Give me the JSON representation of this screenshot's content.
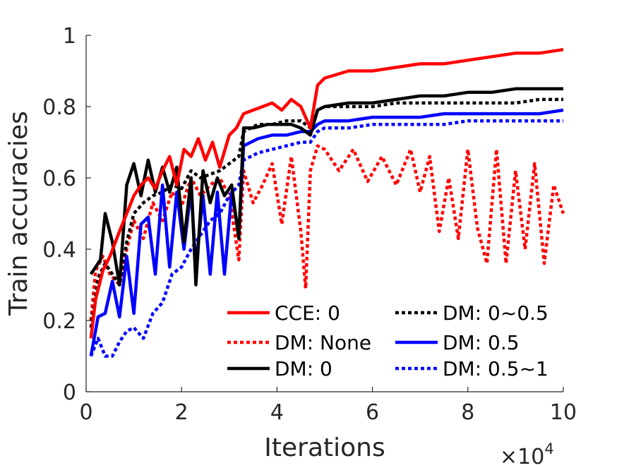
{
  "chart_data": {
    "type": "line",
    "title": "",
    "xlabel": "Iterations",
    "ylabel": "Train accuracies",
    "x_multiplier_label": "×10",
    "x_multiplier_exponent": "4",
    "xlim": [
      0,
      10
    ],
    "ylim": [
      0,
      1
    ],
    "x_ticks": [
      0,
      2,
      4,
      6,
      8,
      10
    ],
    "x_tick_labels": [
      "0",
      "2",
      "4",
      "6",
      "8",
      "10"
    ],
    "y_ticks": [
      0,
      0.2,
      0.4,
      0.6,
      0.8,
      1
    ],
    "y_tick_labels": [
      "0",
      "0.2",
      "0.4",
      "0.6",
      "0.8",
      "1"
    ],
    "grid": false,
    "legend_position": "bottom-right",
    "x_unit_note": "iterations in units of 10^4",
    "series": [
      {
        "name": "CCE: 0",
        "color": "#ff0000",
        "style": "solid",
        "x": [
          0.1,
          0.2,
          0.35,
          0.5,
          0.7,
          0.85,
          1.0,
          1.15,
          1.3,
          1.45,
          1.6,
          1.75,
          1.9,
          2.05,
          2.2,
          2.35,
          2.5,
          2.65,
          2.8,
          3.0,
          3.15,
          3.3,
          3.5,
          3.7,
          3.9,
          4.1,
          4.3,
          4.5,
          4.7,
          4.85,
          5.0,
          5.5,
          6.0,
          6.5,
          7.0,
          7.5,
          8.0,
          8.5,
          9.0,
          9.5,
          10.0
        ],
        "y": [
          0.15,
          0.26,
          0.34,
          0.38,
          0.45,
          0.5,
          0.55,
          0.58,
          0.6,
          0.57,
          0.62,
          0.66,
          0.58,
          0.68,
          0.66,
          0.71,
          0.65,
          0.7,
          0.63,
          0.72,
          0.74,
          0.78,
          0.79,
          0.8,
          0.81,
          0.79,
          0.82,
          0.8,
          0.74,
          0.86,
          0.88,
          0.9,
          0.9,
          0.91,
          0.92,
          0.92,
          0.93,
          0.94,
          0.95,
          0.95,
          0.96
        ]
      },
      {
        "name": "DM: None",
        "color": "#ff0000",
        "style": "dotted",
        "x": [
          0.1,
          0.2,
          0.35,
          0.5,
          0.7,
          0.85,
          1.0,
          1.2,
          1.4,
          1.6,
          1.8,
          2.0,
          2.2,
          2.4,
          2.6,
          2.8,
          3.0,
          3.2,
          3.3,
          3.5,
          3.7,
          3.9,
          4.1,
          4.3,
          4.5,
          4.6,
          4.7,
          4.85,
          5.0,
          5.3,
          5.6,
          5.9,
          6.2,
          6.5,
          6.8,
          7.0,
          7.2,
          7.4,
          7.6,
          7.8,
          8.0,
          8.2,
          8.4,
          8.6,
          8.8,
          9.0,
          9.2,
          9.4,
          9.6,
          9.8,
          10.0
        ],
        "y": [
          0.2,
          0.34,
          0.38,
          0.33,
          0.3,
          0.4,
          0.48,
          0.43,
          0.53,
          0.48,
          0.56,
          0.52,
          0.6,
          0.55,
          0.58,
          0.6,
          0.55,
          0.37,
          0.62,
          0.53,
          0.58,
          0.64,
          0.47,
          0.66,
          0.45,
          0.29,
          0.62,
          0.69,
          0.68,
          0.62,
          0.68,
          0.59,
          0.66,
          0.58,
          0.68,
          0.56,
          0.66,
          0.45,
          0.6,
          0.43,
          0.68,
          0.46,
          0.36,
          0.68,
          0.36,
          0.62,
          0.4,
          0.64,
          0.36,
          0.58,
          0.5
        ]
      },
      {
        "name": "DM: 0",
        "color": "#000000",
        "style": "solid",
        "x": [
          0.1,
          0.3,
          0.4,
          0.55,
          0.7,
          0.85,
          1.0,
          1.15,
          1.3,
          1.45,
          1.6,
          1.75,
          1.9,
          2.05,
          2.2,
          2.3,
          2.45,
          2.6,
          2.75,
          2.9,
          3.05,
          3.2,
          3.3,
          3.5,
          3.8,
          4.0,
          4.3,
          4.5,
          4.7,
          4.85,
          5.0,
          5.5,
          6.0,
          6.5,
          7.0,
          7.5,
          8.0,
          8.5,
          9.0,
          9.5,
          10.0
        ],
        "y": [
          0.33,
          0.37,
          0.5,
          0.42,
          0.3,
          0.58,
          0.64,
          0.55,
          0.65,
          0.56,
          0.63,
          0.56,
          0.63,
          0.42,
          0.6,
          0.3,
          0.62,
          0.53,
          0.6,
          0.55,
          0.58,
          0.43,
          0.74,
          0.74,
          0.75,
          0.75,
          0.75,
          0.74,
          0.72,
          0.79,
          0.8,
          0.81,
          0.81,
          0.82,
          0.83,
          0.83,
          0.84,
          0.84,
          0.85,
          0.85,
          0.85
        ]
      },
      {
        "name": "DM: 0~0.5",
        "color": "#000000",
        "style": "dotted",
        "x": [
          0.1,
          0.25,
          0.4,
          0.55,
          0.7,
          0.85,
          1.0,
          1.2,
          1.4,
          1.6,
          1.8,
          2.0,
          2.2,
          2.4,
          2.6,
          2.8,
          3.0,
          3.2,
          3.3,
          3.6,
          3.9,
          4.2,
          4.5,
          4.7,
          4.85,
          5.0,
          5.5,
          6.0,
          6.5,
          7.0,
          7.5,
          8.0,
          8.5,
          9.0,
          9.5,
          10.0
        ],
        "y": [
          0.18,
          0.32,
          0.36,
          0.33,
          0.3,
          0.42,
          0.5,
          0.53,
          0.55,
          0.56,
          0.58,
          0.57,
          0.62,
          0.6,
          0.61,
          0.62,
          0.64,
          0.66,
          0.73,
          0.75,
          0.75,
          0.76,
          0.76,
          0.74,
          0.79,
          0.8,
          0.8,
          0.8,
          0.81,
          0.81,
          0.81,
          0.81,
          0.81,
          0.81,
          0.82,
          0.82
        ]
      },
      {
        "name": "DM: 0.5",
        "color": "#0000ff",
        "style": "solid",
        "x": [
          0.1,
          0.25,
          0.4,
          0.55,
          0.7,
          0.85,
          1.0,
          1.15,
          1.3,
          1.45,
          1.6,
          1.75,
          1.9,
          2.05,
          2.2,
          2.3,
          2.45,
          2.6,
          2.75,
          2.9,
          3.05,
          3.2,
          3.3,
          3.6,
          3.9,
          4.2,
          4.5,
          4.7,
          4.85,
          5.0,
          5.5,
          6.0,
          6.5,
          7.0,
          7.5,
          8.0,
          8.5,
          9.0,
          9.5,
          10.0
        ],
        "y": [
          0.1,
          0.21,
          0.22,
          0.31,
          0.21,
          0.38,
          0.22,
          0.47,
          0.49,
          0.33,
          0.58,
          0.35,
          0.56,
          0.4,
          0.57,
          0.35,
          0.55,
          0.33,
          0.56,
          0.33,
          0.56,
          0.44,
          0.69,
          0.71,
          0.72,
          0.72,
          0.73,
          0.73,
          0.75,
          0.76,
          0.76,
          0.77,
          0.77,
          0.77,
          0.78,
          0.78,
          0.78,
          0.78,
          0.78,
          0.79
        ]
      },
      {
        "name": "DM: 0.5~1",
        "color": "#0000ff",
        "style": "dotted",
        "x": [
          0.1,
          0.25,
          0.4,
          0.55,
          0.7,
          0.85,
          1.0,
          1.2,
          1.4,
          1.6,
          1.8,
          2.0,
          2.2,
          2.4,
          2.6,
          2.8,
          3.0,
          3.2,
          3.3,
          3.6,
          3.9,
          4.2,
          4.5,
          4.7,
          4.85,
          5.0,
          5.5,
          6.0,
          6.5,
          7.0,
          7.5,
          8.0,
          8.5,
          9.0,
          9.5,
          10.0
        ],
        "y": [
          0.1,
          0.15,
          0.1,
          0.1,
          0.14,
          0.17,
          0.18,
          0.15,
          0.22,
          0.25,
          0.33,
          0.35,
          0.4,
          0.44,
          0.48,
          0.5,
          0.55,
          0.58,
          0.65,
          0.67,
          0.68,
          0.69,
          0.7,
          0.7,
          0.73,
          0.74,
          0.74,
          0.75,
          0.75,
          0.75,
          0.75,
          0.76,
          0.76,
          0.76,
          0.76,
          0.76
        ]
      }
    ]
  }
}
